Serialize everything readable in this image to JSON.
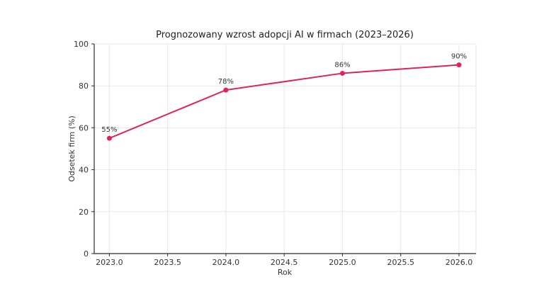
{
  "window": {
    "background": "#ffffff"
  },
  "chart_data": {
    "type": "line",
    "title": "Prognozowany wzrost adopcji AI w firmach (2023–2026)",
    "xlabel": "Rok",
    "ylabel": "Odsetek firm (%)",
    "x": [
      2023,
      2024,
      2025,
      2026
    ],
    "values": [
      55,
      78,
      86,
      90
    ],
    "point_labels": [
      "55%",
      "78%",
      "86%",
      "90%"
    ],
    "xticks": [
      2023.0,
      2023.5,
      2024.0,
      2024.5,
      2025.0,
      2025.5,
      2026.0
    ],
    "xtick_labels": [
      "2023.0",
      "2023.5",
      "2024.0",
      "2024.5",
      "2025.0",
      "2025.5",
      "2026.0"
    ],
    "yticks": [
      0,
      20,
      40,
      60,
      80,
      100
    ],
    "ytick_labels": [
      "0",
      "20",
      "40",
      "60",
      "80",
      "100"
    ],
    "xlim": [
      2022.87,
      2026.146
    ],
    "ylim": [
      0,
      100
    ],
    "grid": true,
    "legend": "none",
    "colors": {
      "series": "#e02358",
      "grid": "#e7e7e7",
      "spine": "#2b2b2b",
      "tick_text": "#333333",
      "annotation_text": "#333333",
      "background": "#ffffff"
    }
  }
}
